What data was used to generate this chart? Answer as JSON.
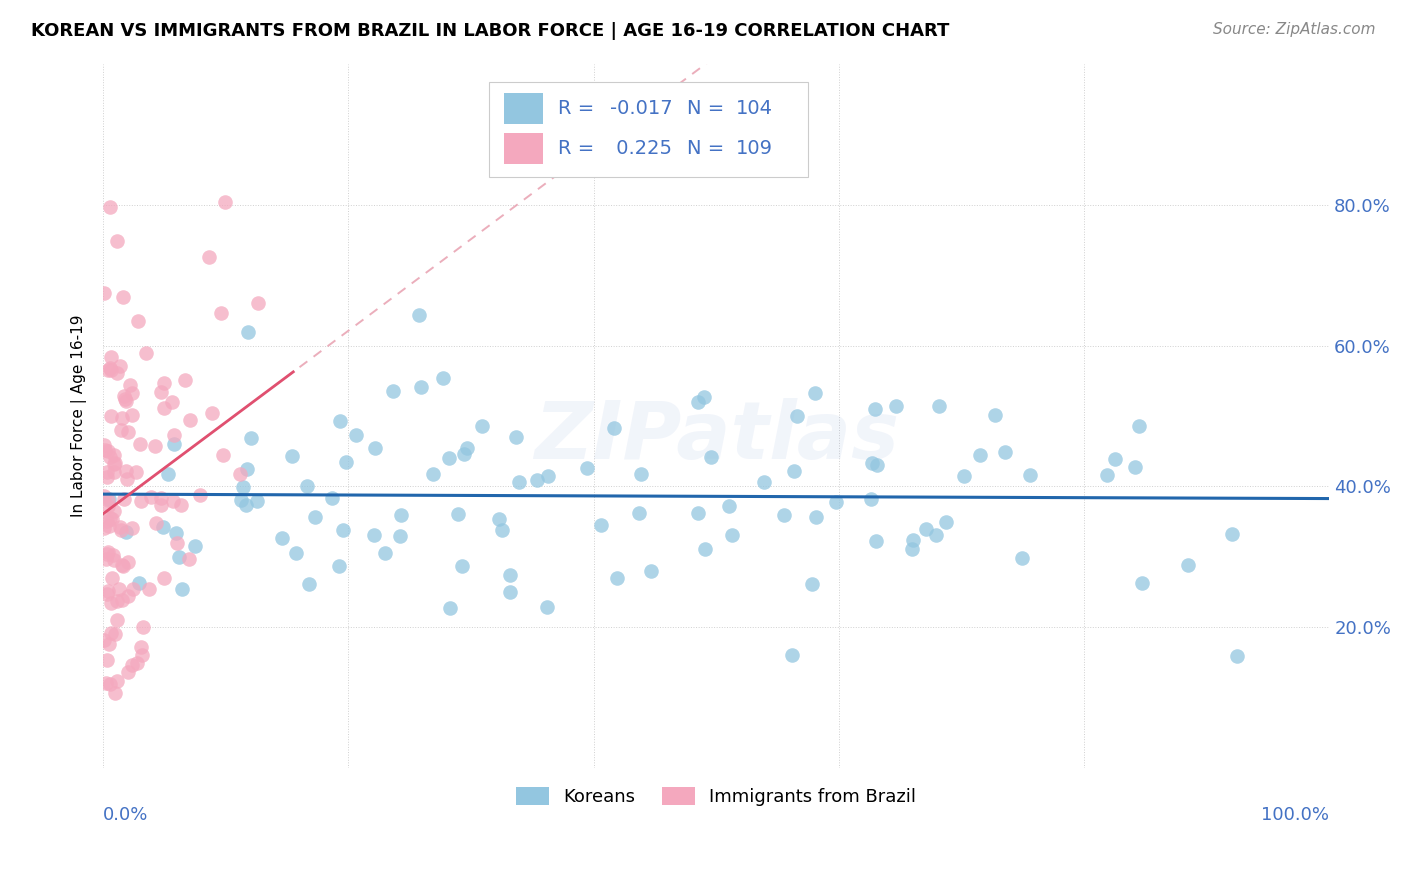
{
  "title": "KOREAN VS IMMIGRANTS FROM BRAZIL IN LABOR FORCE | AGE 16-19 CORRELATION CHART",
  "source": "Source: ZipAtlas.com",
  "ylabel": "In Labor Force | Age 16-19",
  "xlim": [
    0.0,
    1.0
  ],
  "ylim": [
    0.0,
    1.0
  ],
  "ytick_vals": [
    0.0,
    0.2,
    0.4,
    0.6,
    0.8
  ],
  "ytick_labels": [
    "",
    "20.0%",
    "40.0%",
    "60.0%",
    "80.0%"
  ],
  "xtick_label_left": "0.0%",
  "xtick_label_right": "100.0%",
  "watermark": "ZIPatlas",
  "legend_text_color": "#4472c4",
  "blue_color": "#93c6e0",
  "pink_color": "#f4a8be",
  "blue_line_color": "#2166ac",
  "pink_solid_color": "#e05070",
  "pink_dash_color": "#e8a0b0",
  "blue_r": -0.017,
  "pink_r": 0.225,
  "blue_n": 104,
  "pink_n": 109,
  "grid_color": "#d0d0d0",
  "title_fontsize": 13,
  "source_fontsize": 11,
  "tick_label_fontsize": 13,
  "legend_fontsize": 14,
  "ylabel_fontsize": 11
}
